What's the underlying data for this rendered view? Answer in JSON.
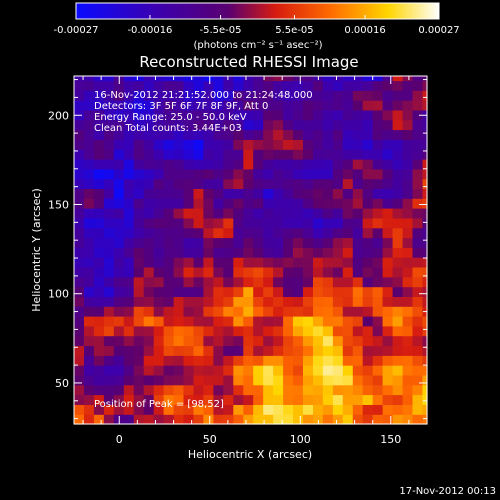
{
  "chart_data": {
    "type": "heatmap",
    "title": "Reconstructed RHESSI Image",
    "xlabel": "Heliocentric X (arcsec)",
    "ylabel": "Heliocentric Y (arcsec)",
    "xlim": [
      -25,
      170
    ],
    "ylim": [
      27,
      222
    ],
    "x_ticks": [
      0,
      50,
      100,
      150
    ],
    "y_ticks": [
      50,
      100,
      150,
      200
    ],
    "colorbar": {
      "ticks": [
        -0.00027,
        -0.00016,
        -5.5e-05,
        5.5e-05,
        0.00016,
        0.00027
      ],
      "tick_labels": [
        "-0.00027",
        "-0.00016",
        "-5.5e-05",
        "5.5e-05",
        "0.00016",
        "0.00027"
      ],
      "range": [
        -0.00027,
        0.00027
      ],
      "unit_label": "(photons cm⁻² s⁻¹ asec⁻²)",
      "colormap": [
        "#0a0aff",
        "#3b00b0",
        "#5a0070",
        "#d61c10",
        "#ff6a00",
        "#ffd500",
        "#ffffff"
      ]
    },
    "annotations": [
      "16-Nov-2012 21:21:52.000 to 21:24:48.000",
      "Detectors: 3F 5F 6F 7F 8F 9F, Att 0",
      "Energy Range: 25.0 - 50.0 keV",
      "Clean     Total counts: 3.44E+03"
    ],
    "peak_label": "Position of Peak = [98,52]",
    "peak": [
      98,
      52
    ],
    "grid": false
  },
  "footer": {
    "timestamp": "17-Nov-2012 00:13"
  }
}
